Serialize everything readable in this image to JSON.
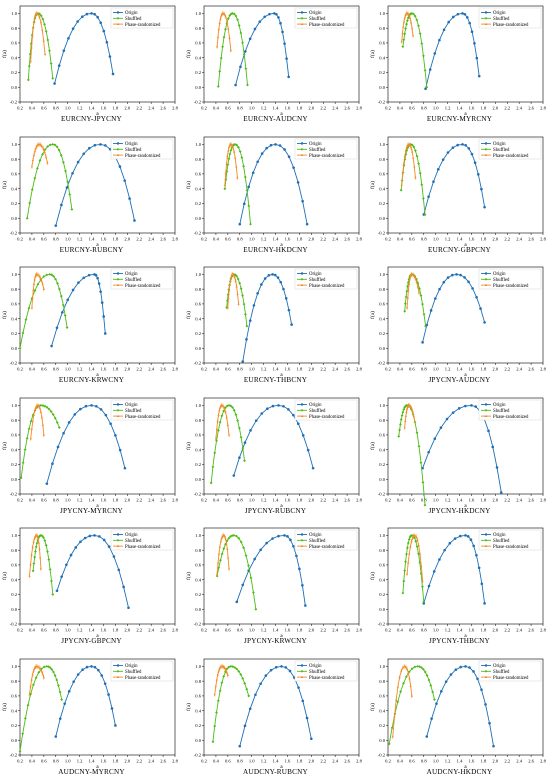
{
  "legend": {
    "origin": "Origin",
    "shuffled": "Shuffled",
    "phase": "Phase-randomized"
  },
  "colors": {
    "origin": "#1f6fb5",
    "shuffled": "#4cbb17",
    "phase": "#f28c28"
  },
  "chart_data": {
    "type": "line",
    "xlabel": "a",
    "ylabel": "f(a)",
    "xlim": [
      0.2,
      2.8
    ],
    "ylim": [
      -0.2,
      1.1
    ],
    "xticks": [
      "0.2",
      "0.4",
      "0.6",
      "0.8",
      "1.0",
      "1.2",
      "1.4",
      "1.6",
      "1.8",
      "2.0",
      "2.2",
      "2.4",
      "2.6",
      "2.8"
    ],
    "yticks": [
      "-0.2",
      "0.0",
      "0.2",
      "0.4",
      "0.6",
      "0.8",
      "1.0"
    ],
    "legend_position": "top-right",
    "panels": [
      {
        "title": "EURCNY-JPYCNY",
        "origin": {
          "amin": 0.78,
          "apeak": 1.4,
          "amax": 1.76,
          "fl": 0.05,
          "fr": 0.18
        },
        "shuffled": {
          "amin": 0.34,
          "apeak": 0.5,
          "amax": 0.75,
          "fl": 0.1,
          "fr": 0.12
        },
        "phase": {
          "amin": 0.38,
          "apeak": 0.48,
          "amax": 0.62,
          "fl": 0.35,
          "fr": 0.45
        }
      },
      {
        "title": "EURCNY-AUDCNY",
        "origin": {
          "amin": 0.73,
          "apeak": 1.38,
          "amax": 1.62,
          "fl": 0.03,
          "fr": 0.14
        },
        "shuffled": {
          "amin": 0.44,
          "apeak": 0.68,
          "amax": 0.93,
          "fl": 0.01,
          "fr": 0.03
        },
        "phase": {
          "amin": 0.42,
          "apeak": 0.52,
          "amax": 0.65,
          "fl": 0.55,
          "fr": 0.5
        }
      },
      {
        "title": "EURCNY-MYRCNY",
        "origin": {
          "amin": 0.83,
          "apeak": 1.45,
          "amax": 1.73,
          "fl": -0.02,
          "fr": 0.15
        },
        "shuffled": {
          "amin": 0.45,
          "apeak": 0.6,
          "amax": 0.85,
          "fl": 0.55,
          "fr": 0.0
        },
        "phase": {
          "amin": 0.43,
          "apeak": 0.52,
          "amax": 0.62,
          "fl": 0.62,
          "fr": 0.7
        }
      },
      {
        "title": "EURCNY-RUBCNY",
        "origin": {
          "amin": 0.8,
          "apeak": 1.55,
          "amax": 2.12,
          "fl": -0.1,
          "fr": -0.03
        },
        "shuffled": {
          "amin": 0.32,
          "apeak": 0.75,
          "amax": 1.07,
          "fl": 0.0,
          "fr": 0.12
        },
        "phase": {
          "amin": 0.4,
          "apeak": 0.52,
          "amax": 0.66,
          "fl": 0.7,
          "fr": 0.75
        }
      },
      {
        "title": "EURCNY-HKDCNY",
        "origin": {
          "amin": 0.8,
          "apeak": 1.4,
          "amax": 1.93,
          "fl": -0.08,
          "fr": -0.08
        },
        "shuffled": {
          "amin": 0.55,
          "apeak": 0.72,
          "amax": 0.98,
          "fl": 0.4,
          "fr": -0.08
        },
        "phase": {
          "amin": 0.55,
          "apeak": 0.65,
          "amax": 0.76,
          "fl": 0.45,
          "fr": 0.55
        }
      },
      {
        "title": "EURCNY-GBPCNY",
        "origin": {
          "amin": 0.8,
          "apeak": 1.45,
          "amax": 1.82,
          "fl": 0.05,
          "fr": 0.15
        },
        "shuffled": {
          "amin": 0.42,
          "apeak": 0.58,
          "amax": 0.82,
          "fl": 0.38,
          "fr": 0.05
        },
        "phase": {
          "amin": 0.43,
          "apeak": 0.55,
          "amax": 0.66,
          "fl": 0.45,
          "fr": 0.55
        }
      },
      {
        "title": "EURCNY-KRWCNY",
        "origin": {
          "amin": 0.73,
          "apeak": 1.45,
          "amax": 1.63,
          "fl": 0.03,
          "fr": 0.2
        },
        "shuffled": {
          "amin": 0.2,
          "apeak": 0.7,
          "amax": 0.99,
          "fl": 0.0,
          "fr": 0.28
        },
        "phase": {
          "amin": 0.4,
          "apeak": 0.48,
          "amax": 0.6,
          "fl": 0.55,
          "fr": 0.8
        }
      },
      {
        "title": "EURCNY-THBCNY",
        "origin": {
          "amin": 0.85,
          "apeak": 1.35,
          "amax": 1.67,
          "fl": -0.18,
          "fr": 0.32
        },
        "shuffled": {
          "amin": 0.58,
          "apeak": 0.7,
          "amax": 0.92,
          "fl": 0.55,
          "fr": 0.3
        },
        "phase": {
          "amin": 0.6,
          "apeak": 0.68,
          "amax": 0.78,
          "fl": 0.55,
          "fr": 0.6
        }
      },
      {
        "title": "JPYCNY-AUDCNY",
        "origin": {
          "amin": 0.78,
          "apeak": 1.35,
          "amax": 1.82,
          "fl": 0.08,
          "fr": 0.35
        },
        "shuffled": {
          "amin": 0.48,
          "apeak": 0.6,
          "amax": 0.83,
          "fl": 0.5,
          "fr": 0.3
        },
        "phase": {
          "amin": 0.52,
          "apeak": 0.6,
          "amax": 0.72,
          "fl": 0.55,
          "fr": 0.75
        }
      },
      {
        "title": "JPYCNY-MYRCNY",
        "origin": {
          "amin": 0.65,
          "apeak": 1.4,
          "amax": 1.96,
          "fl": -0.06,
          "fr": 0.15
        },
        "shuffled": {
          "amin": 0.22,
          "apeak": 0.55,
          "amax": 0.86,
          "fl": 0.02,
          "fr": 0.7
        },
        "phase": {
          "amin": 0.38,
          "apeak": 0.5,
          "amax": 0.6,
          "fl": 0.55,
          "fr": 0.6
        }
      },
      {
        "title": "JPYCNY-RUBCNY",
        "origin": {
          "amin": 0.7,
          "apeak": 1.45,
          "amax": 2.03,
          "fl": 0.05,
          "fr": 0.15
        },
        "shuffled": {
          "amin": 0.32,
          "apeak": 0.62,
          "amax": 0.88,
          "fl": -0.05,
          "fr": 0.25
        },
        "phase": {
          "amin": 0.4,
          "apeak": 0.5,
          "amax": 0.62,
          "fl": 0.55,
          "fr": 0.6
        }
      },
      {
        "title": "JPYCNY-HKDCNY",
        "origin": {
          "amin": 0.78,
          "apeak": 1.6,
          "amax": 2.1,
          "fl": 0.15,
          "fr": -0.18
        },
        "shuffled": {
          "amin": 0.38,
          "apeak": 0.52,
          "amax": 0.82,
          "fl": 0.58,
          "fr": -0.35
        },
        "phase": {
          "amin": 0.48,
          "apeak": 0.55,
          "amax": 0.65,
          "fl": 0.7,
          "fr": 0.78
        }
      },
      {
        "title": "JPYCNY-GBPCNY",
        "origin": {
          "amin": 0.82,
          "apeak": 1.45,
          "amax": 2.02,
          "fl": 0.25,
          "fr": 0.02
        },
        "shuffled": {
          "amin": 0.42,
          "apeak": 0.55,
          "amax": 0.75,
          "fl": 0.52,
          "fr": 0.2
        },
        "phase": {
          "amin": 0.36,
          "apeak": 0.48,
          "amax": 0.55,
          "fl": 0.45,
          "fr": 0.55
        }
      },
      {
        "title": "JPYCNY-KRWCNY",
        "origin": {
          "amin": 0.75,
          "apeak": 1.55,
          "amax": 1.9,
          "fl": 0.1,
          "fr": 0.05
        },
        "shuffled": {
          "amin": 0.42,
          "apeak": 0.7,
          "amax": 1.07,
          "fl": 0.45,
          "fr": 0.0
        },
        "phase": {
          "amin": 0.42,
          "apeak": 0.53,
          "amax": 0.62,
          "fl": 0.48,
          "fr": 0.55
        }
      },
      {
        "title": "JPYCNY-THBCNY",
        "origin": {
          "amin": 0.8,
          "apeak": 1.5,
          "amax": 1.82,
          "fl": 0.08,
          "fr": 0.08
        },
        "shuffled": {
          "amin": 0.45,
          "apeak": 0.6,
          "amax": 0.8,
          "fl": 0.22,
          "fr": 0.1
        },
        "phase": {
          "amin": 0.52,
          "apeak": 0.65,
          "amax": 0.78,
          "fl": 0.48,
          "fr": 0.38
        }
      },
      {
        "title": "AUDCNY-MYRCNY",
        "origin": {
          "amin": 0.8,
          "apeak": 1.4,
          "amax": 1.8,
          "fl": 0.05,
          "fr": 0.2
        },
        "shuffled": {
          "amin": 0.2,
          "apeak": 0.65,
          "amax": 0.9,
          "fl": -0.15,
          "fr": 0.55
        },
        "phase": {
          "amin": 0.36,
          "apeak": 0.48,
          "amax": 0.6,
          "fl": 0.62,
          "fr": 0.85
        }
      },
      {
        "title": "AUDCNY-RUBCNY",
        "origin": {
          "amin": 0.8,
          "apeak": 1.5,
          "amax": 2.0,
          "fl": -0.08,
          "fr": 0.02
        },
        "shuffled": {
          "amin": 0.35,
          "apeak": 0.65,
          "amax": 0.95,
          "fl": -0.02,
          "fr": 0.6
        },
        "phase": {
          "amin": 0.38,
          "apeak": 0.5,
          "amax": 0.6,
          "fl": 0.62,
          "fr": 0.88
        }
      },
      {
        "title": "AUDCNY-HKDCNY",
        "origin": {
          "amin": 0.85,
          "apeak": 1.5,
          "amax": 1.97,
          "fl": 0.05,
          "fr": -0.08
        },
        "shuffled": {
          "amin": 0.22,
          "apeak": 0.7,
          "amax": 0.98,
          "fl": -0.05,
          "fr": 0.55
        },
        "phase": {
          "amin": 0.28,
          "apeak": 0.48,
          "amax": 0.6,
          "fl": 0.05,
          "fr": 0.6
        }
      }
    ]
  }
}
